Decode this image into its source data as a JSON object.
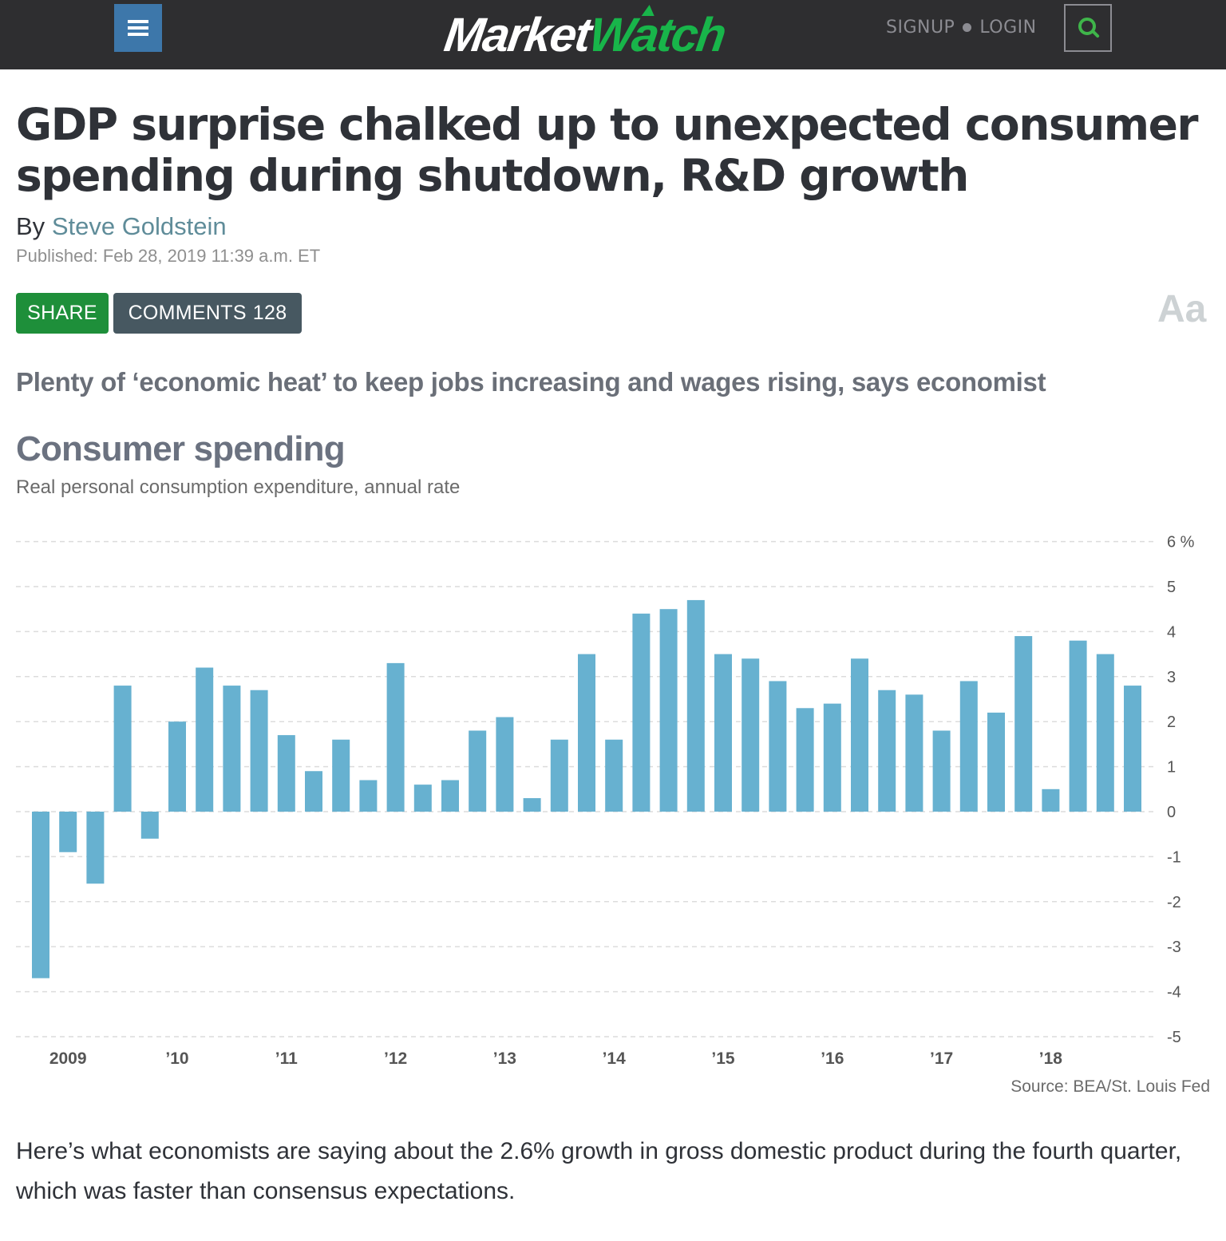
{
  "header": {
    "menu_icon": "hamburger-menu-icon",
    "logo_part1": "Market",
    "logo_part2": "Watch",
    "signup_label": "SIGNUP",
    "login_label": "LOGIN",
    "search_icon": "search-icon",
    "colors": {
      "bar_bg": "#2e2e30",
      "menu_bg": "#3d77aa",
      "brand_green": "#18b54a"
    }
  },
  "article": {
    "headline": "GDP surprise chalked up to unexpected consumer spending during shutdown, R&D growth",
    "by_prefix": "By",
    "author": "Steve Goldstein",
    "published": "Published: Feb 28, 2019 11:39 a.m. ET",
    "share_label": "SHARE",
    "comments_label": "COMMENTS",
    "comments_count": "128",
    "font_size_toggle": "Aa",
    "dek": "Plenty of ‘economic heat’ to keep jobs increasing and wages rising, says economist",
    "body": "Here’s what economists are saying about the 2.6% growth in gross domestic product during the fourth quarter, which was faster than consensus expectations."
  },
  "chart_data": {
    "type": "bar",
    "title": "Consumer spending",
    "subtitle": "Real personal consumption expenditure, annual rate",
    "source": "Source: BEA/St. Louis Fed",
    "xlabel": "",
    "ylabel": "",
    "unit_label": "%",
    "ylim": [
      -5,
      6
    ],
    "yticks": [
      6,
      5,
      4,
      3,
      2,
      1,
      0,
      -1,
      -2,
      -3,
      -4,
      -5
    ],
    "ytick_labels": [
      "6 %",
      "5",
      "4",
      "3",
      "2",
      "1",
      "0",
      "-1",
      "-2",
      "-3",
      "-4",
      "-5"
    ],
    "y_axis_position": "right",
    "grid": true,
    "bar_color": "#67b1d0",
    "x_tick_labels": [
      {
        "label": "2009",
        "quarter_index": 1
      },
      {
        "label": "’10",
        "quarter_index": 5
      },
      {
        "label": "’11",
        "quarter_index": 9
      },
      {
        "label": "’12",
        "quarter_index": 13
      },
      {
        "label": "’13",
        "quarter_index": 17
      },
      {
        "label": "’14",
        "quarter_index": 21
      },
      {
        "label": "’15",
        "quarter_index": 25
      },
      {
        "label": "’16",
        "quarter_index": 29
      },
      {
        "label": "’17",
        "quarter_index": 33
      },
      {
        "label": "’18",
        "quarter_index": 37
      }
    ],
    "categories": [
      "2008Q4",
      "2009Q1",
      "2009Q2",
      "2009Q3",
      "2009Q4",
      "2010Q1",
      "2010Q2",
      "2010Q3",
      "2010Q4",
      "2011Q1",
      "2011Q2",
      "2011Q3",
      "2011Q4",
      "2012Q1",
      "2012Q2",
      "2012Q3",
      "2012Q4",
      "2013Q1",
      "2013Q2",
      "2013Q3",
      "2013Q4",
      "2014Q1",
      "2014Q2",
      "2014Q3",
      "2014Q4",
      "2015Q1",
      "2015Q2",
      "2015Q3",
      "2015Q4",
      "2016Q1",
      "2016Q2",
      "2016Q3",
      "2016Q4",
      "2017Q1",
      "2017Q2",
      "2017Q3",
      "2017Q4",
      "2018Q1",
      "2018Q2",
      "2018Q3",
      "2018Q4"
    ],
    "values": [
      -3.7,
      -0.9,
      -1.6,
      2.8,
      -0.6,
      2.0,
      3.2,
      2.8,
      2.7,
      1.7,
      0.9,
      1.6,
      0.7,
      3.3,
      0.6,
      0.7,
      1.8,
      2.1,
      0.3,
      1.6,
      3.5,
      1.6,
      4.4,
      4.5,
      4.7,
      3.5,
      3.4,
      2.9,
      2.3,
      2.4,
      3.4,
      2.7,
      2.6,
      1.8,
      2.9,
      2.2,
      3.9,
      0.5,
      3.8,
      3.5,
      2.8
    ]
  }
}
